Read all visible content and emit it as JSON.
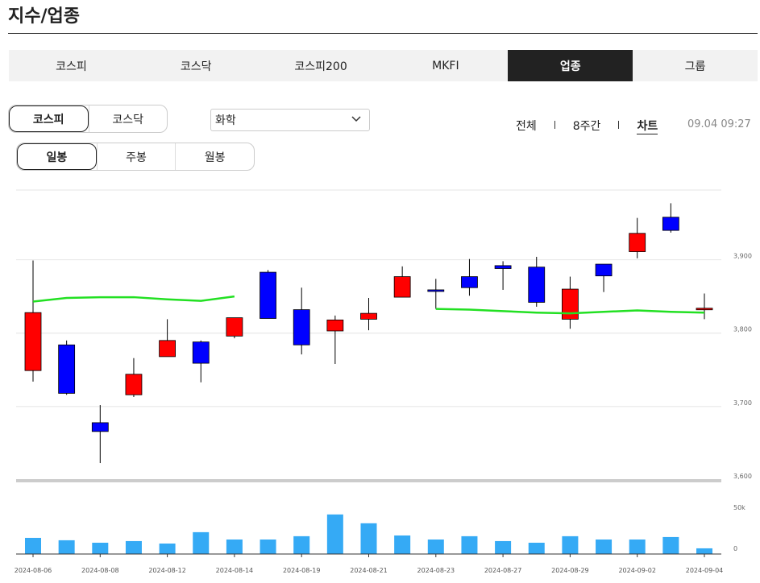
{
  "header": {
    "title": "지수/업종"
  },
  "tabs": {
    "items": [
      "코스피",
      "코스닥",
      "코스피200",
      "MKFI",
      "업종",
      "그룹"
    ],
    "active": 4
  },
  "market_toggle": {
    "items": [
      "코스피",
      "코스닥"
    ],
    "active": 0
  },
  "select": {
    "value": "화학"
  },
  "period_links": {
    "items": [
      "전체",
      "8주간",
      "차트"
    ],
    "active": 2
  },
  "timestamp": "09.04 09:27",
  "interval_toggle": {
    "items": [
      "일봉",
      "주봉",
      "월봉"
    ],
    "active": 0
  },
  "chart_data": {
    "type": "candlestick",
    "categories": [
      "2024-08-06",
      null,
      "2024-08-08",
      null,
      "2024-08-12",
      null,
      "2024-08-14",
      null,
      "2024-08-19",
      null,
      "2024-08-21",
      null,
      "2024-08-23",
      null,
      "2024-08-27",
      null,
      "2024-08-29",
      null,
      "2024-09-02",
      null,
      "2024-09-04"
    ],
    "open": [
      3749,
      3784,
      3678,
      3716,
      3768,
      3788,
      3796,
      3883,
      3832,
      3803,
      3819,
      3849,
      3859,
      3877,
      3892,
      3890,
      3819,
      3894,
      3911,
      3958,
      3832
    ],
    "high": [
      3899,
      3790,
      3702,
      3766,
      3819,
      3790,
      3821,
      3886,
      3862,
      3824,
      3848,
      3891,
      3874,
      3901,
      3898,
      3904,
      3877,
      3894,
      3957,
      3977,
      3854
    ],
    "low": [
      3734,
      3716,
      3623,
      3713,
      3768,
      3733,
      3793,
      3820,
      3771,
      3758,
      3804,
      3849,
      3833,
      3851,
      3859,
      3836,
      3806,
      3856,
      3902,
      3937,
      3819
    ],
    "close": [
      3828,
      3718,
      3666,
      3744,
      3790,
      3759,
      3821,
      3820,
      3784,
      3818,
      3827,
      3877,
      3857,
      3862,
      3888,
      3842,
      3860,
      3878,
      3936,
      3940,
      3834
    ],
    "up_color": "#ff0000",
    "down_color": "#0000ff",
    "ylim": [
      3600,
      3995
    ],
    "yticks": [
      {
        "value": 3600,
        "label": "3,600"
      },
      {
        "value": 3700,
        "label": "3,700"
      },
      {
        "value": 3800,
        "label": "3,800"
      },
      {
        "value": 3900,
        "label": "3,900"
      }
    ],
    "grid": true,
    "moving_average": {
      "color": "#22e022",
      "values": [
        3843,
        3848,
        3849,
        3849,
        3846,
        3844,
        3850,
        null,
        null,
        null,
        null,
        null,
        3833,
        3832,
        3830,
        3828,
        3827,
        3829,
        3831,
        3829,
        3828
      ]
    },
    "volume": {
      "color": "#35aaf5",
      "values": [
        19600,
        16700,
        13700,
        15700,
        12700,
        26500,
        17600,
        17600,
        21600,
        48000,
        37300,
        22500,
        17600,
        21600,
        15700,
        13700,
        21600,
        17600,
        17600,
        20600,
        6900
      ],
      "ylim": [
        0,
        86000
      ],
      "yticks": [
        0,
        {
          "value": 50000,
          "label": "50k"
        }
      ]
    }
  }
}
